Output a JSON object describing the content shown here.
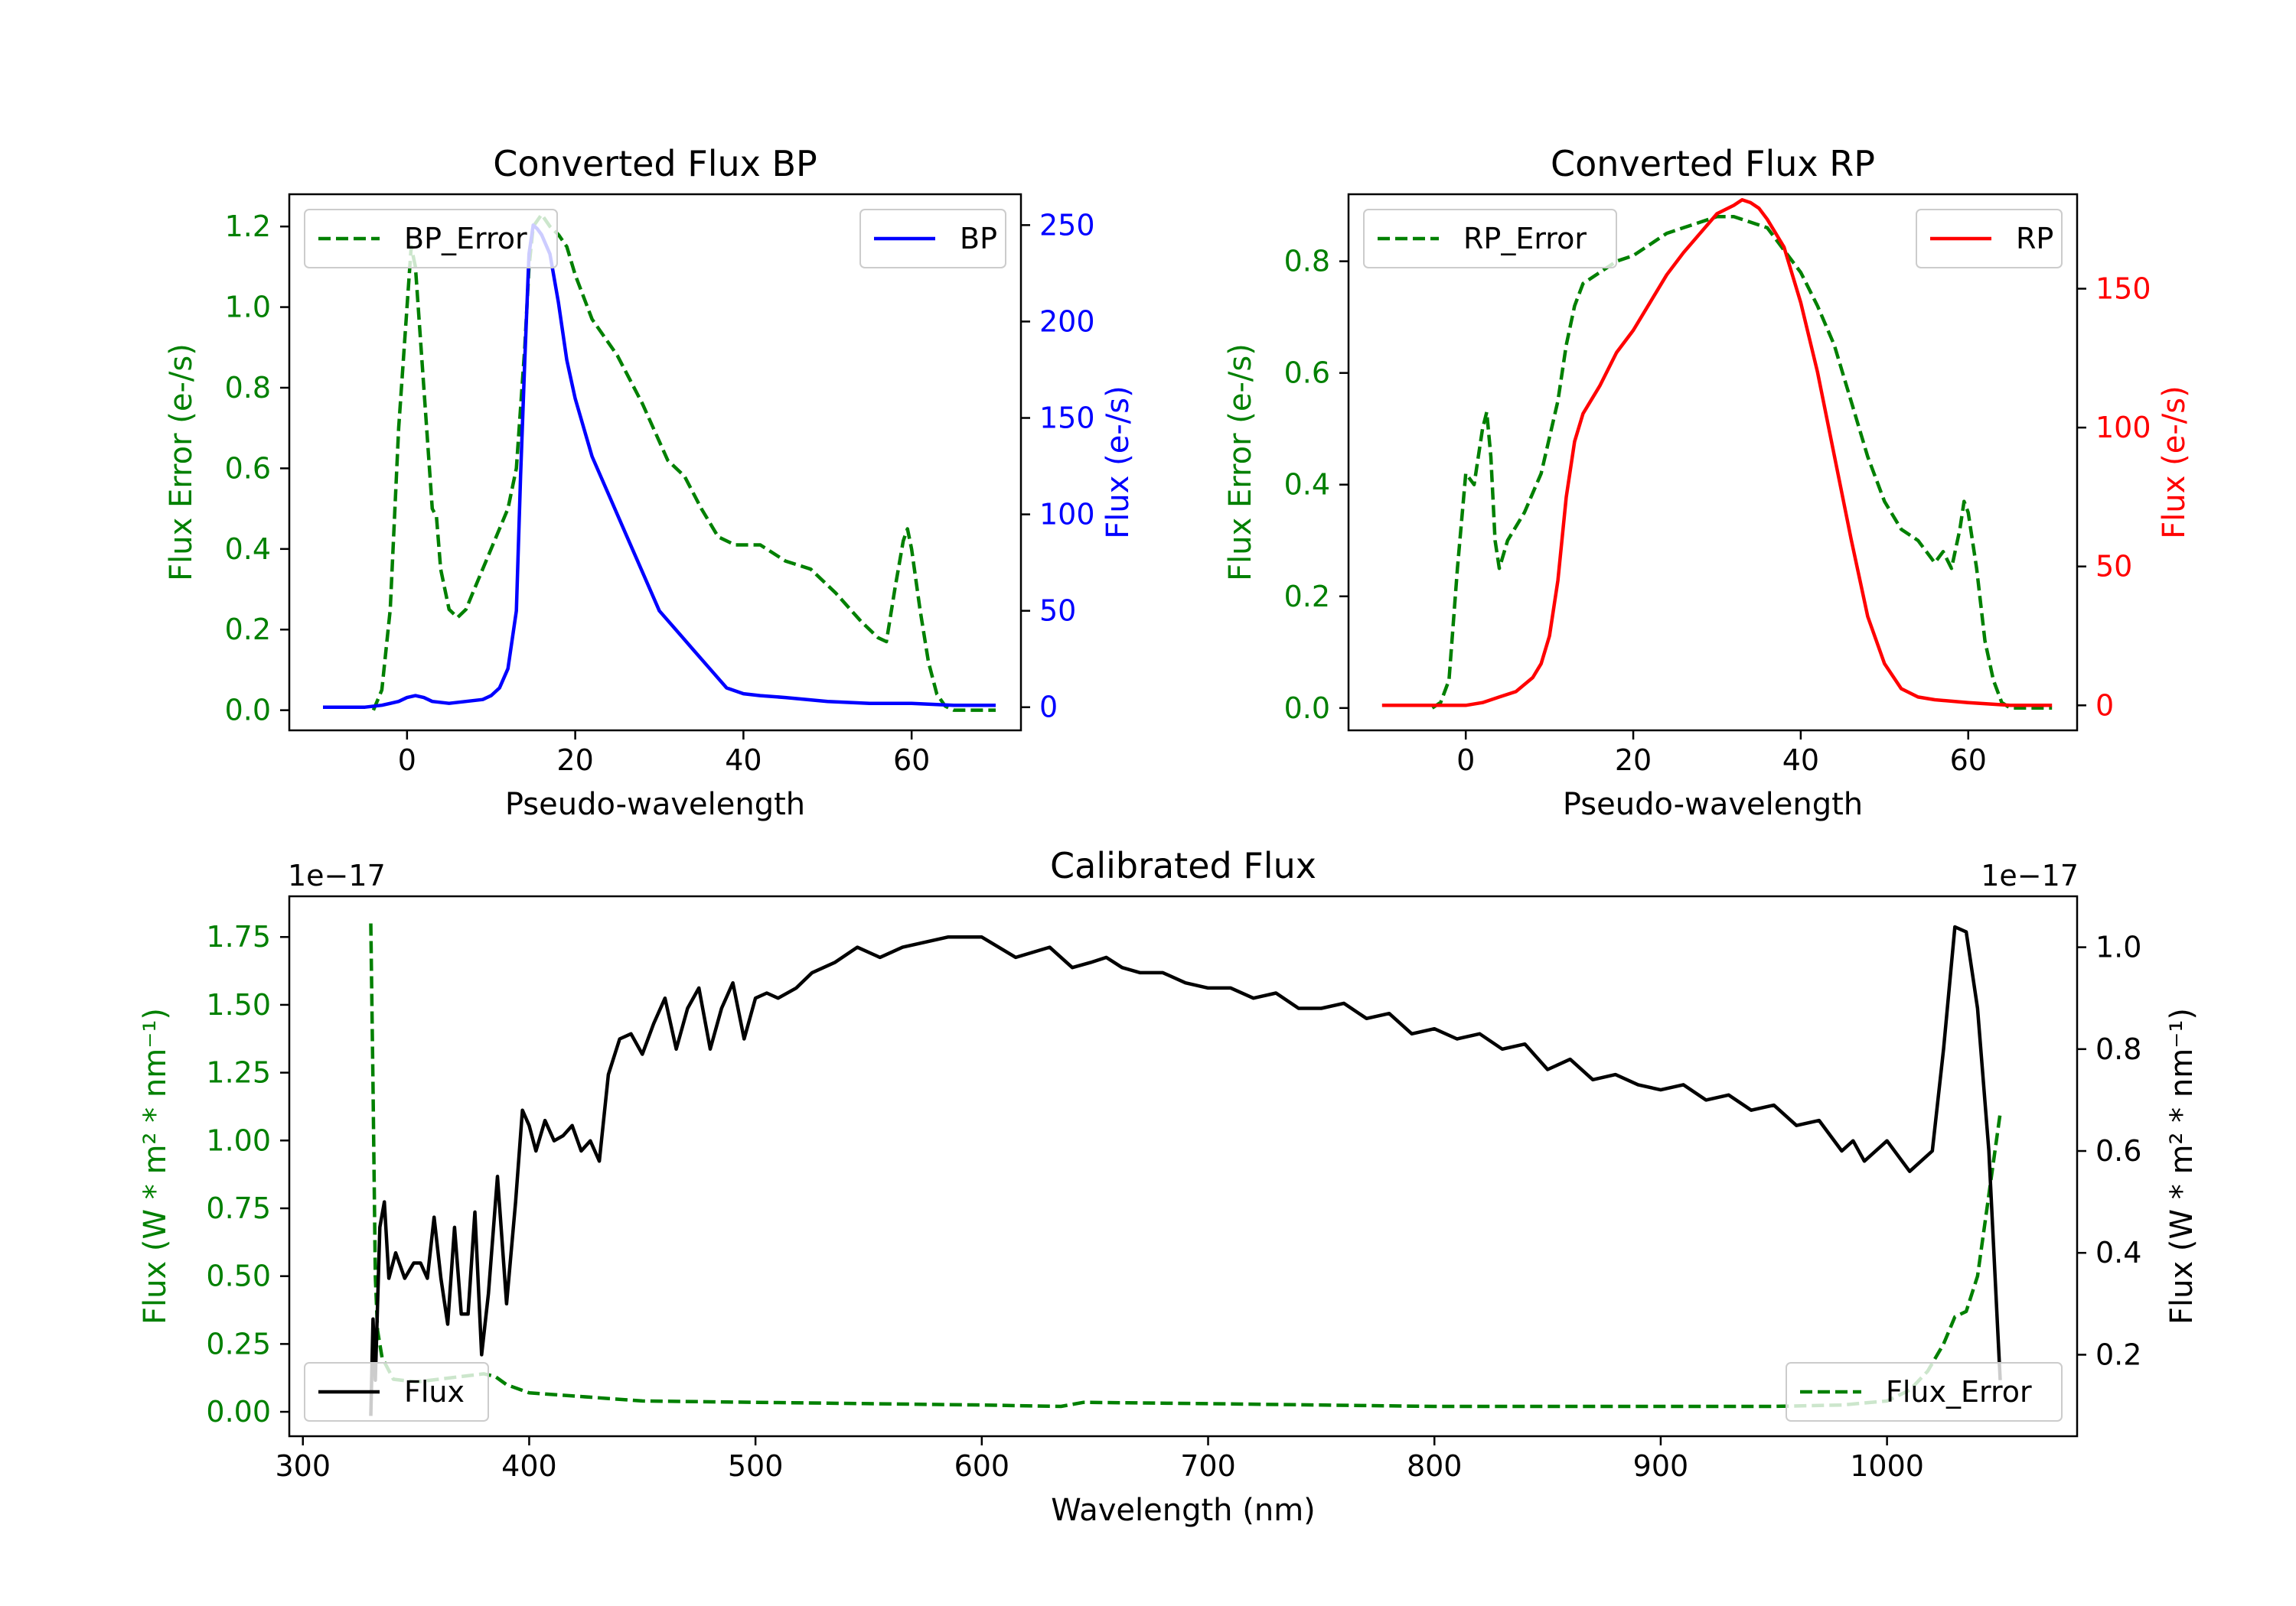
{
  "chart_data": [
    {
      "type": "line",
      "title": "Converted Flux BP",
      "xlabel": "Pseudo-wavelength",
      "xlim": [
        -14,
        73
      ],
      "xticks": [
        0,
        20,
        40,
        60
      ],
      "left_axis": {
        "label": "Flux Error (e-/s)",
        "color": "#008000",
        "ylim": [
          -0.05,
          1.28
        ],
        "ticks": [
          0.0,
          0.2,
          0.4,
          0.6,
          0.8,
          1.0,
          1.2
        ]
      },
      "right_axis": {
        "label": "Flux (e-/s)",
        "color": "#0000ff",
        "ylim": [
          -12,
          266
        ],
        "ticks": [
          0,
          50,
          100,
          150,
          200,
          250
        ]
      },
      "series": [
        {
          "name": "BP_Error",
          "axis": "left",
          "color": "#008000",
          "dash": true,
          "x": [
            -4,
            -3,
            -2,
            -1,
            0,
            0.5,
            1,
            2,
            3,
            3.5,
            4,
            5,
            6,
            7,
            8,
            10,
            12,
            13,
            14,
            14.5,
            15,
            16,
            17,
            18,
            19,
            20,
            22,
            25,
            28,
            31,
            33,
            35,
            37,
            39,
            42,
            45,
            48,
            51,
            54,
            56,
            57,
            58,
            59,
            59.5,
            60,
            61,
            62,
            63,
            64,
            65,
            66,
            68,
            70
          ],
          "values": [
            0.0,
            0.05,
            0.25,
            0.7,
            1.0,
            1.15,
            1.1,
            0.8,
            0.5,
            0.48,
            0.35,
            0.25,
            0.23,
            0.25,
            0.3,
            0.4,
            0.5,
            0.6,
            0.9,
            1.1,
            1.2,
            1.23,
            1.2,
            1.18,
            1.15,
            1.08,
            0.97,
            0.88,
            0.76,
            0.62,
            0.58,
            0.5,
            0.43,
            0.41,
            0.41,
            0.37,
            0.35,
            0.29,
            0.22,
            0.18,
            0.17,
            0.3,
            0.42,
            0.45,
            0.4,
            0.25,
            0.12,
            0.04,
            0.01,
            0.0,
            0.0,
            0.0,
            0.0
          ]
        },
        {
          "name": "BP",
          "axis": "right",
          "color": "#0000ff",
          "dash": false,
          "x": [
            -10,
            -8,
            -5,
            -3,
            -1,
            0,
            1,
            2,
            3,
            5,
            7,
            9,
            10,
            11,
            12,
            13,
            13.5,
            14,
            14.5,
            15,
            15.5,
            16,
            17,
            18,
            19,
            20,
            22,
            24,
            26,
            28,
            30,
            32,
            34,
            36,
            38,
            40,
            42,
            45,
            50,
            55,
            60,
            65,
            70
          ],
          "values": [
            0,
            0,
            0,
            1,
            3,
            5,
            6,
            5,
            3,
            2,
            3,
            4,
            6,
            10,
            20,
            50,
            120,
            180,
            235,
            250,
            248,
            245,
            235,
            210,
            180,
            160,
            130,
            110,
            90,
            70,
            50,
            40,
            30,
            20,
            10,
            7,
            6,
            5,
            3,
            2,
            2,
            1,
            1
          ]
        }
      ],
      "legend": [
        "BP_Error",
        "BP"
      ]
    },
    {
      "type": "line",
      "title": "Converted Flux RP",
      "xlabel": "Pseudo-wavelength",
      "xlim": [
        -14,
        73
      ],
      "xticks": [
        0,
        20,
        40,
        60
      ],
      "left_axis": {
        "label": "Flux Error (e-/s)",
        "color": "#008000",
        "ylim": [
          -0.04,
          0.92
        ],
        "ticks": [
          0.0,
          0.2,
          0.4,
          0.6,
          0.8
        ]
      },
      "right_axis": {
        "label": "Flux (e-/s)",
        "color": "#ff0000",
        "ylim": [
          -9,
          184
        ],
        "ticks": [
          0,
          50,
          100,
          150
        ]
      },
      "series": [
        {
          "name": "RP_Error",
          "axis": "left",
          "color": "#008000",
          "dash": true,
          "x": [
            -4,
            -3,
            -2,
            -1,
            0,
            1,
            2,
            2.5,
            3,
            3.5,
            4,
            5,
            7,
            9,
            11,
            12,
            13,
            14,
            16,
            18,
            20,
            22,
            24,
            26,
            28,
            30,
            32,
            34,
            36,
            38,
            40,
            42,
            44,
            46,
            48,
            50,
            52,
            54,
            56,
            57,
            58,
            59,
            59.5,
            60,
            61,
            62,
            63,
            64,
            65,
            66,
            68,
            70
          ],
          "values": [
            0.0,
            0.01,
            0.05,
            0.25,
            0.42,
            0.4,
            0.5,
            0.53,
            0.45,
            0.3,
            0.25,
            0.3,
            0.35,
            0.42,
            0.55,
            0.65,
            0.72,
            0.76,
            0.78,
            0.8,
            0.81,
            0.83,
            0.85,
            0.86,
            0.87,
            0.88,
            0.88,
            0.87,
            0.86,
            0.82,
            0.78,
            0.72,
            0.65,
            0.55,
            0.45,
            0.37,
            0.32,
            0.3,
            0.26,
            0.28,
            0.25,
            0.32,
            0.37,
            0.35,
            0.25,
            0.12,
            0.05,
            0.01,
            0.0,
            0.0,
            0.0,
            0.0
          ]
        },
        {
          "name": "RP",
          "axis": "right",
          "color": "#ff0000",
          "dash": false,
          "x": [
            -10,
            -5,
            0,
            2,
            4,
            6,
            8,
            9,
            10,
            11,
            12,
            13,
            14,
            15,
            16,
            18,
            20,
            22,
            24,
            26,
            28,
            30,
            32,
            33,
            34,
            35,
            36,
            38,
            40,
            42,
            44,
            46,
            48,
            50,
            52,
            54,
            56,
            60,
            65,
            70
          ],
          "values": [
            0,
            0,
            0,
            1,
            3,
            5,
            10,
            15,
            25,
            45,
            75,
            95,
            105,
            110,
            115,
            127,
            135,
            145,
            155,
            163,
            170,
            177,
            180,
            182,
            181,
            179,
            175,
            165,
            145,
            120,
            90,
            60,
            32,
            15,
            6,
            3,
            2,
            1,
            0,
            0
          ]
        }
      ],
      "legend": [
        "RP_Error",
        "RP"
      ]
    },
    {
      "type": "line",
      "title": "Calibrated Flux",
      "xlabel": "Wavelength (nm)",
      "xlim": [
        294,
        1084
      ],
      "xticks": [
        300,
        400,
        500,
        600,
        700,
        800,
        900,
        1000
      ],
      "left_axis": {
        "label": "Flux (W * m² * nm⁻¹)",
        "color": "#008000",
        "ylim": [
          -0.09,
          1.9
        ],
        "ticks": [
          0.0,
          0.25,
          0.5,
          0.75,
          1.0,
          1.25,
          1.5,
          1.75
        ],
        "offset_text": "1e−17"
      },
      "right_axis": {
        "label": "Flux (W * m² * nm⁻¹)",
        "color": "#000000",
        "ylim": [
          0.04,
          1.1
        ],
        "ticks": [
          0.2,
          0.4,
          0.6,
          0.8,
          1.0
        ],
        "offset_text": "1e−17"
      },
      "series": [
        {
          "name": "Flux_Error",
          "axis": "left",
          "color": "#008000",
          "dash": true,
          "x": [
            330,
            331,
            332,
            333,
            335,
            340,
            350,
            360,
            370,
            380,
            385,
            390,
            400,
            450,
            500,
            550,
            600,
            635,
            645,
            700,
            800,
            900,
            950,
            980,
            1000,
            1010,
            1018,
            1025,
            1030,
            1035,
            1040,
            1045,
            1050
          ],
          "values": [
            1.8,
            1.2,
            0.5,
            0.3,
            0.2,
            0.12,
            0.11,
            0.12,
            0.13,
            0.14,
            0.13,
            0.1,
            0.07,
            0.04,
            0.035,
            0.03,
            0.025,
            0.02,
            0.035,
            0.03,
            0.02,
            0.02,
            0.02,
            0.025,
            0.04,
            0.08,
            0.15,
            0.25,
            0.35,
            0.37,
            0.5,
            0.8,
            1.1
          ]
        },
        {
          "name": "Flux",
          "axis": "right",
          "color": "#000000",
          "dash": false,
          "x": [
            330,
            331,
            332,
            334,
            336,
            338,
            341,
            345,
            349,
            352,
            355,
            358,
            361,
            364,
            367,
            370,
            373,
            376,
            379,
            382,
            386,
            390,
            394,
            397,
            400,
            403,
            407,
            411,
            415,
            419,
            423,
            427,
            431,
            435,
            440,
            445,
            450,
            455,
            460,
            465,
            470,
            475,
            480,
            485,
            490,
            495,
            500,
            505,
            510,
            518,
            525,
            535,
            545,
            555,
            565,
            575,
            585,
            600,
            615,
            630,
            640,
            648,
            655,
            662,
            670,
            680,
            690,
            700,
            710,
            720,
            730,
            740,
            750,
            760,
            770,
            780,
            790,
            800,
            810,
            820,
            830,
            840,
            850,
            860,
            870,
            880,
            890,
            900,
            910,
            920,
            930,
            940,
            950,
            960,
            970,
            980,
            985,
            990,
            1000,
            1010,
            1020,
            1025,
            1030,
            1035,
            1040,
            1045,
            1050
          ],
          "values": [
            0.08,
            0.27,
            0.15,
            0.45,
            0.5,
            0.35,
            0.4,
            0.35,
            0.38,
            0.38,
            0.35,
            0.47,
            0.35,
            0.26,
            0.45,
            0.28,
            0.28,
            0.48,
            0.2,
            0.32,
            0.55,
            0.3,
            0.5,
            0.68,
            0.65,
            0.6,
            0.66,
            0.62,
            0.63,
            0.65,
            0.6,
            0.62,
            0.58,
            0.75,
            0.82,
            0.83,
            0.79,
            0.85,
            0.9,
            0.8,
            0.88,
            0.92,
            0.8,
            0.88,
            0.93,
            0.82,
            0.9,
            0.91,
            0.9,
            0.92,
            0.95,
            0.97,
            1.0,
            0.98,
            1.0,
            1.01,
            1.02,
            1.02,
            0.98,
            1.0,
            0.96,
            0.97,
            0.98,
            0.96,
            0.95,
            0.95,
            0.93,
            0.92,
            0.92,
            0.9,
            0.91,
            0.88,
            0.88,
            0.89,
            0.86,
            0.87,
            0.83,
            0.84,
            0.82,
            0.83,
            0.8,
            0.81,
            0.76,
            0.78,
            0.74,
            0.75,
            0.73,
            0.72,
            0.73,
            0.7,
            0.71,
            0.68,
            0.69,
            0.65,
            0.66,
            0.6,
            0.62,
            0.58,
            0.62,
            0.56,
            0.6,
            0.8,
            1.04,
            1.03,
            0.88,
            0.6,
            0.15
          ]
        }
      ],
      "legend": [
        "Flux",
        "Flux_Error"
      ]
    }
  ]
}
